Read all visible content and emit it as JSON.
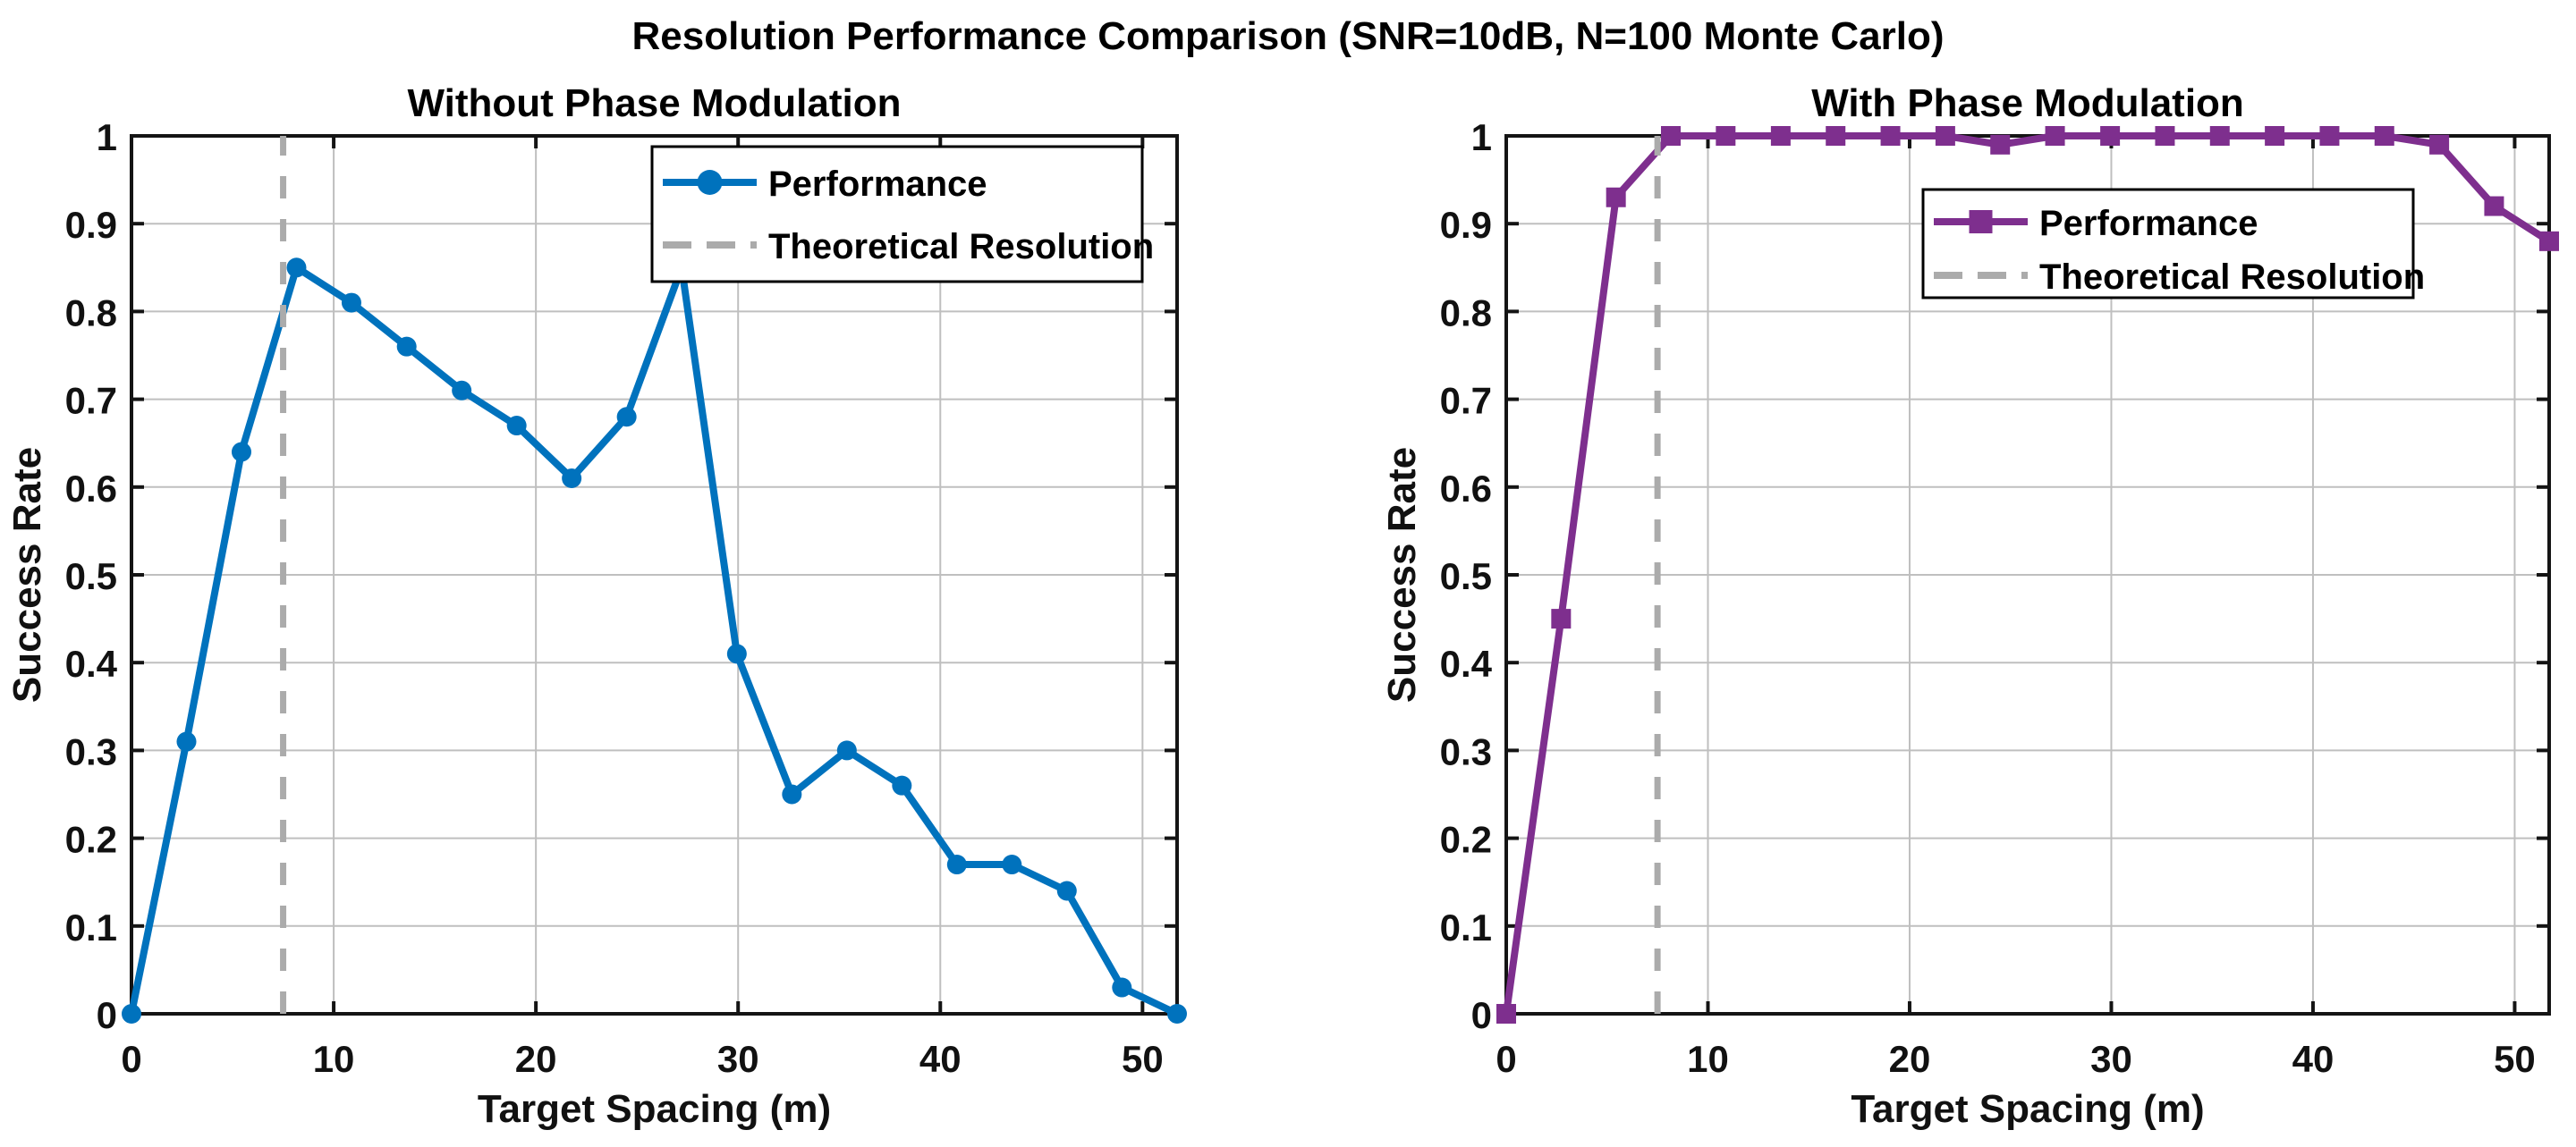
{
  "figure": {
    "title": "Resolution Performance Comparison (SNR=10dB, N=100 Monte Carlo)",
    "background": "#ffffff"
  },
  "colors": {
    "blue_series": "#0072BD",
    "purple_series": "#7E2F8E",
    "dashed_reference": "#ABABAB",
    "grid": "#bfbfbf",
    "axis": "#141414"
  },
  "chart_data": [
    {
      "type": "line",
      "title": "Without Phase Modulation",
      "xlabel": "Target Spacing (m)",
      "ylabel": "Success Rate",
      "xlim": [
        0,
        51.71
      ],
      "ylim": [
        0,
        1
      ],
      "xticks": [
        0,
        10,
        20,
        30,
        40,
        50
      ],
      "yticks": [
        0,
        0.1,
        0.2,
        0.3,
        0.4,
        0.5,
        0.6,
        0.7,
        0.8,
        0.9,
        1
      ],
      "grid": true,
      "legend_position": "top-right-inside",
      "legend_entries": [
        "Performance",
        "Theoretical Resolution"
      ],
      "series": [
        {
          "name": "Performance",
          "kind": "line+marker",
          "marker": "circle",
          "color": "#0072BD",
          "x": [
            0,
            2.72,
            5.44,
            8.16,
            10.88,
            13.61,
            16.33,
            19.05,
            21.77,
            24.49,
            27.21,
            29.94,
            32.66,
            35.38,
            38.1,
            40.82,
            43.54,
            46.26,
            48.98,
            51.71
          ],
          "y": [
            0,
            0.31,
            0.64,
            0.85,
            0.81,
            0.76,
            0.71,
            0.67,
            0.61,
            0.68,
            0.85,
            0.41,
            0.25,
            0.3,
            0.26,
            0.17,
            0.17,
            0.14,
            0.03,
            0
          ]
        },
        {
          "name": "Theoretical Resolution",
          "kind": "vline",
          "style": "dashed",
          "color": "#ABABAB",
          "x": 7.5
        }
      ]
    },
    {
      "type": "line",
      "title": "With Phase Modulation",
      "xlabel": "Target Spacing (m)",
      "ylabel": "Success Rate",
      "xlim": [
        0,
        51.71
      ],
      "ylim": [
        0,
        1
      ],
      "xticks": [
        0,
        10,
        20,
        30,
        40,
        50
      ],
      "yticks": [
        0,
        0.1,
        0.2,
        0.3,
        0.4,
        0.5,
        0.6,
        0.7,
        0.8,
        0.9,
        1
      ],
      "grid": true,
      "legend_position": "center-right-inside",
      "legend_entries": [
        "Performance",
        "Theoretical Resolution"
      ],
      "series": [
        {
          "name": "Performance",
          "kind": "line+marker",
          "marker": "square",
          "color": "#7E2F8E",
          "x": [
            0,
            2.72,
            5.44,
            8.16,
            10.88,
            13.61,
            16.33,
            19.05,
            21.77,
            24.49,
            27.21,
            29.94,
            32.66,
            35.38,
            38.1,
            40.82,
            43.54,
            46.26,
            48.98,
            51.71
          ],
          "y": [
            0,
            0.45,
            0.93,
            1,
            1,
            1,
            1,
            1,
            1,
            0.99,
            1,
            1,
            1,
            1,
            1,
            1,
            1,
            0.99,
            0.92,
            0.88
          ]
        },
        {
          "name": "Theoretical Resolution",
          "kind": "vline",
          "style": "dashed",
          "color": "#ABABAB",
          "x": 7.5
        }
      ]
    }
  ]
}
